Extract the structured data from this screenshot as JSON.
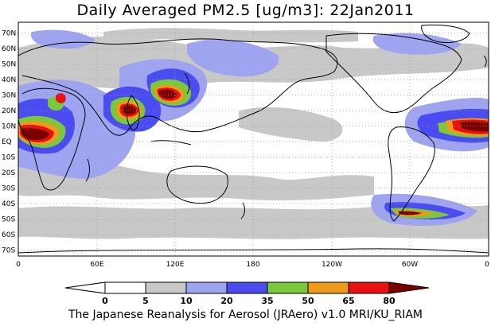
{
  "title": "Daily Averaged PM2.5 [ug/m3]: 22Jan2011",
  "footer": "The Japanese Reanalysis for Aerosol (JRAero) v1.0 MRI/KU_RIAM",
  "map": {
    "lat_labels": [
      "70N",
      "60N",
      "50N",
      "40N",
      "30N",
      "20N",
      "10N",
      "EQ",
      "10S",
      "20S",
      "30S",
      "40S",
      "50S",
      "60S",
      "70S"
    ],
    "lon_labels": [
      "0",
      "60E",
      "120E",
      "180",
      "120W",
      "60W",
      "0"
    ]
  },
  "colorbar": {
    "levels": [
      "0",
      "5",
      "10",
      "20",
      "35",
      "50",
      "65",
      "80"
    ],
    "colors": [
      "#ffffff",
      "#c8c8c8",
      "#9fa4f0",
      "#4a4cf0",
      "#7ac83c",
      "#f09a1c",
      "#e81010",
      "#7a0000"
    ]
  },
  "colors": {
    "land_outline": "#000000",
    "grid": "#9a9a9a"
  }
}
